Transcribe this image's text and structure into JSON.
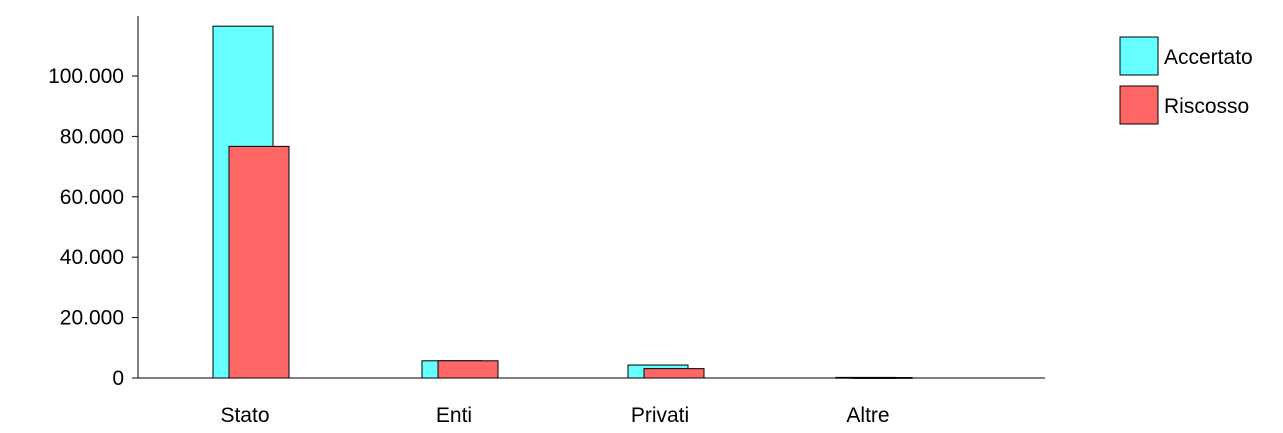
{
  "chart_data": {
    "type": "bar",
    "title": "",
    "xlabel": "",
    "ylabel": "",
    "categories": [
      "Stato",
      "Enti",
      "Privati",
      "Altre"
    ],
    "series": [
      {
        "name": "Accertato",
        "values": [
          116500,
          5700,
          4300,
          200
        ]
      },
      {
        "name": "Riscosso",
        "values": [
          76700,
          5700,
          3100,
          150
        ]
      }
    ],
    "ylim": [
      0,
      120000
    ],
    "yticks": [
      0,
      20000,
      40000,
      60000,
      80000,
      100000
    ],
    "ytick_labels": [
      "0",
      "20.000",
      "40.000",
      "60.000",
      "80.000",
      "100.000"
    ],
    "grid": false,
    "legend_position": "top-right",
    "colors": {
      "Accertato": "#66ffff",
      "Riscosso": "#ff6666",
      "axis": "#000000",
      "outline": "#000000"
    }
  }
}
